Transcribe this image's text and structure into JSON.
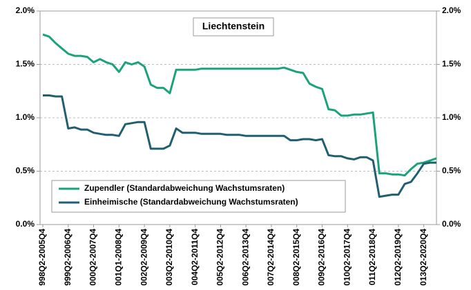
{
  "chart_data": {
    "type": "line",
    "title": "Liechtenstein",
    "categories": [
      "998Q2-2005Q4",
      null,
      null,
      null,
      "999Q2-2006Q4",
      null,
      null,
      null,
      "000Q2-2007Q4",
      null,
      null,
      null,
      "001Q1-2008Q4",
      null,
      null,
      null,
      "002Q2-2009Q4",
      null,
      null,
      null,
      "003Q2-2010Q4",
      null,
      null,
      null,
      "004Q2-2011Q4",
      null,
      null,
      null,
      "005Q2-2012Q4",
      null,
      null,
      null,
      "006Q2-2013Q4",
      null,
      null,
      null,
      "007Q2-2014Q4",
      null,
      null,
      null,
      "008Q2-2015Q4",
      null,
      null,
      null,
      "009Q2-2016Q4",
      null,
      null,
      null,
      "010Q2-2017Q4",
      null,
      null,
      null,
      "011Q2-2018Q4",
      null,
      null,
      null,
      "012Q2-2019Q4",
      null,
      null,
      null,
      "013Q2-2020Q4",
      null,
      null
    ],
    "series": [
      {
        "name": "Zupendler (Standardabweichung Wachstumsraten)",
        "color": "#1aa37a",
        "values": [
          1.78,
          1.76,
          1.7,
          1.65,
          1.6,
          1.58,
          1.58,
          1.57,
          1.52,
          1.55,
          1.52,
          1.5,
          1.43,
          1.52,
          1.5,
          1.52,
          1.48,
          1.31,
          1.28,
          1.28,
          1.23,
          1.45,
          1.45,
          1.45,
          1.45,
          1.46,
          1.46,
          1.46,
          1.46,
          1.46,
          1.46,
          1.46,
          1.46,
          1.46,
          1.46,
          1.46,
          1.46,
          1.46,
          1.47,
          1.45,
          1.43,
          1.42,
          1.32,
          1.29,
          1.27,
          1.08,
          1.07,
          1.02,
          1.02,
          1.03,
          1.03,
          1.04,
          1.05,
          0.48,
          0.48,
          0.47,
          0.47,
          0.46,
          0.52,
          0.57,
          0.58,
          0.6,
          0.62
        ]
      },
      {
        "name": "Einheimische (Standardabweichung Wachstumsraten)",
        "color": "#1f5f70",
        "values": [
          1.21,
          1.21,
          1.2,
          1.2,
          0.9,
          0.91,
          0.89,
          0.89,
          0.86,
          0.85,
          0.84,
          0.84,
          0.83,
          0.94,
          0.95,
          0.96,
          0.96,
          0.71,
          0.71,
          0.71,
          0.74,
          0.9,
          0.86,
          0.86,
          0.86,
          0.85,
          0.85,
          0.85,
          0.85,
          0.84,
          0.84,
          0.84,
          0.83,
          0.83,
          0.83,
          0.83,
          0.83,
          0.83,
          0.83,
          0.79,
          0.79,
          0.8,
          0.8,
          0.79,
          0.8,
          0.65,
          0.64,
          0.64,
          0.62,
          0.61,
          0.63,
          0.63,
          0.6,
          0.26,
          0.27,
          0.28,
          0.28,
          0.38,
          0.4,
          0.48,
          0.57,
          0.58,
          0.58
        ]
      }
    ],
    "ylim": [
      0,
      2
    ],
    "yticks": [
      {
        "value": 0,
        "label": "0.0%"
      },
      {
        "value": 0.5,
        "label": "0.5%"
      },
      {
        "value": 1,
        "label": "1.0%"
      },
      {
        "value": 1.5,
        "label": "1.5%"
      },
      {
        "value": 2,
        "label": "2.0%"
      }
    ],
    "y2lim": [
      0,
      2
    ],
    "y2ticks": [
      {
        "value": 0,
        "label": "0.0%"
      },
      {
        "value": 0.5,
        "label": "0.5%"
      },
      {
        "value": 1,
        "label": "1.0%"
      },
      {
        "value": 1.5,
        "label": "1.5%"
      },
      {
        "value": 2,
        "label": "2.0%"
      }
    ],
    "grid": true,
    "legend": "lower-left"
  }
}
